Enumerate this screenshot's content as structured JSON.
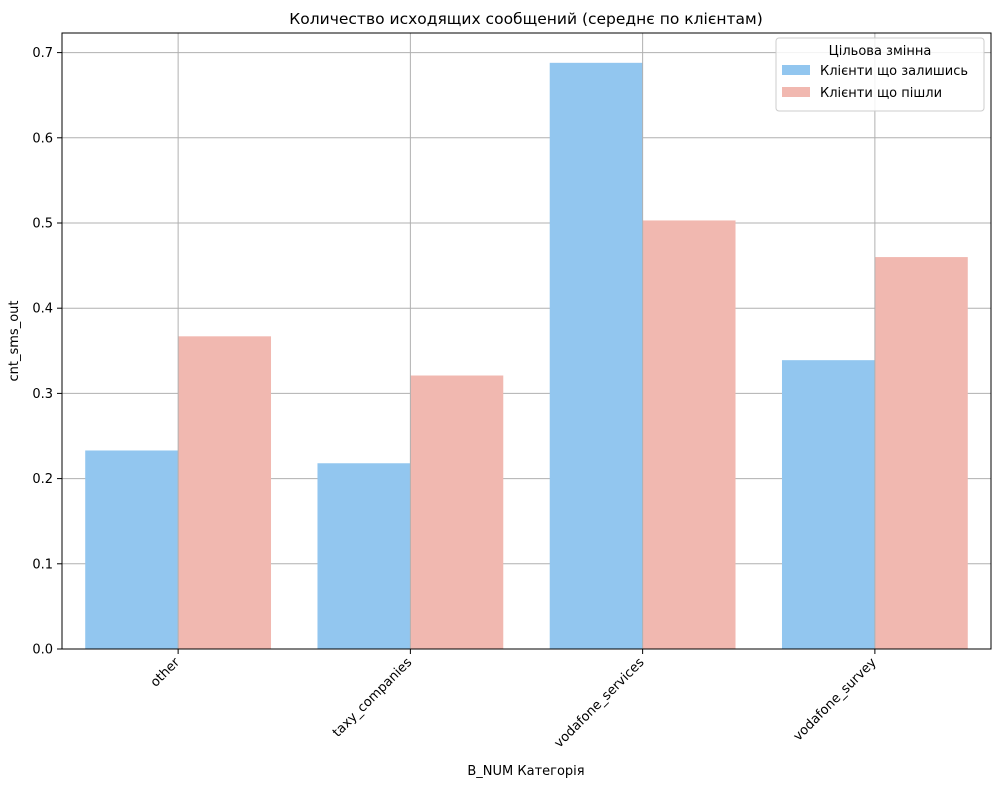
{
  "chart_data": {
    "type": "bar",
    "title": "Количество исходящих сообщений (середнє по клієнтам)",
    "xlabel": "B_NUM Категорія",
    "ylabel": "cnt_sms_out",
    "categories": [
      "other",
      "taxy_companies",
      "vodafone_services",
      "vodafone_survey"
    ],
    "series": [
      {
        "name": "Клієнти що залишись",
        "color": "#92c6ef",
        "values": [
          0.233,
          0.218,
          0.688,
          0.339
        ]
      },
      {
        "name": "Клієнти що пішли",
        "color": "#f1b8b0",
        "values": [
          0.367,
          0.321,
          0.503,
          0.46
        ]
      }
    ],
    "ylim": [
      0,
      0.723
    ],
    "yticks": [
      "0.0",
      "0.1",
      "0.2",
      "0.3",
      "0.4",
      "0.5",
      "0.6",
      "0.7"
    ],
    "grid": true,
    "legend": {
      "title": "Цільова змінна",
      "placement": "top-right"
    }
  }
}
